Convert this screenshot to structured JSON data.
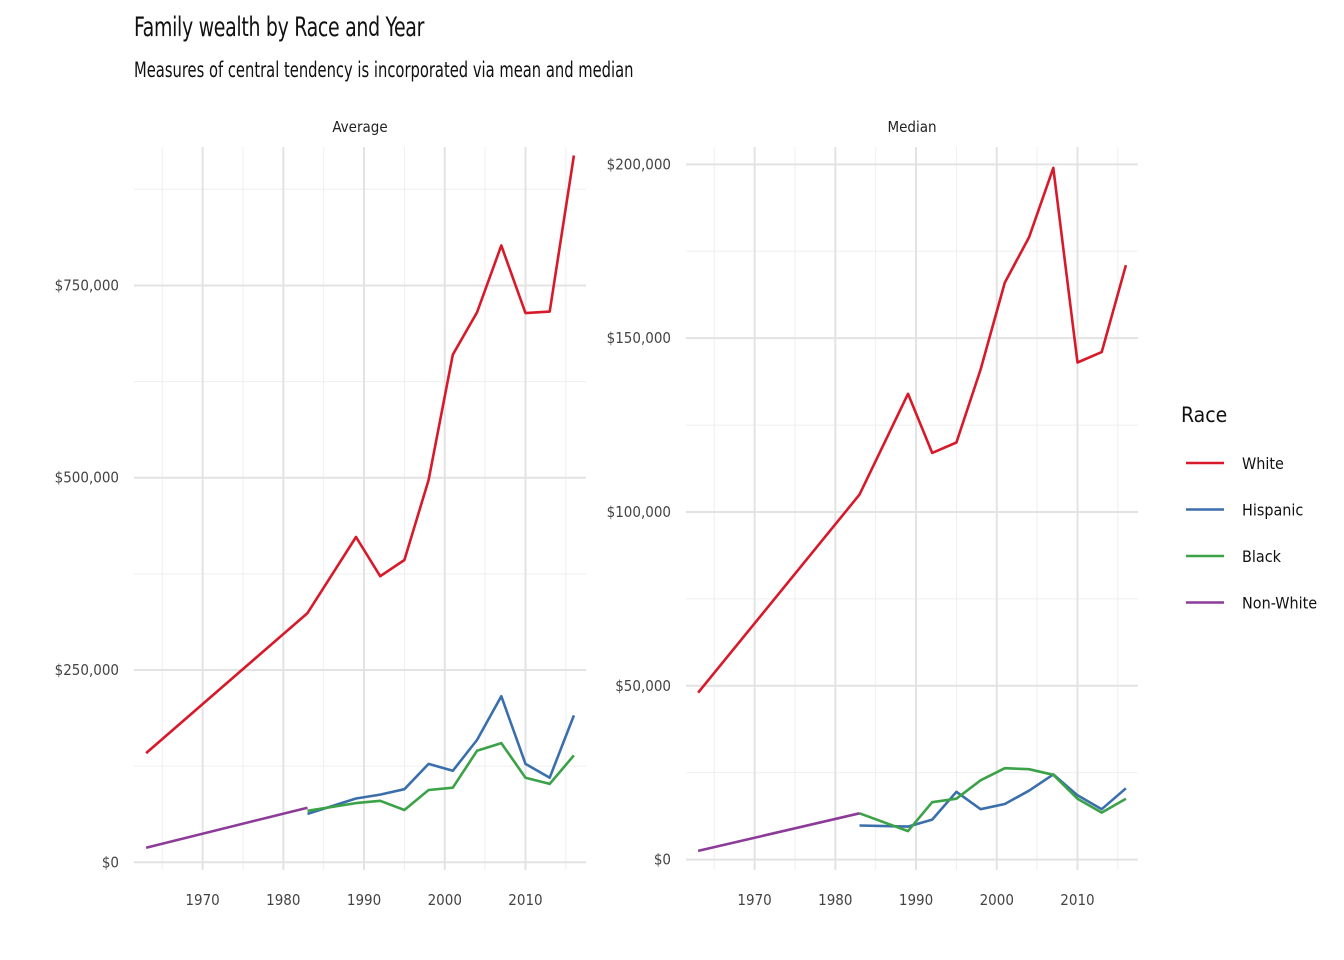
{
  "title": "Family wealth by Race and Year",
  "subtitle": "Measures of central tendency is incorporated via mean and median",
  "legend": {
    "title": "Race",
    "items": [
      {
        "label": "White",
        "color": "#d7192a"
      },
      {
        "label": "Hispanic",
        "color": "#3a6fab"
      },
      {
        "label": "Black",
        "color": "#3ba247"
      },
      {
        "label": "Non-White",
        "color": "#8c3c98"
      }
    ]
  },
  "chart_data": [
    {
      "type": "line",
      "panel": "Average",
      "xlim": [
        1961.5,
        2017.5
      ],
      "ylim": [
        -10000,
        930000
      ],
      "x_ticks": [
        1970,
        1980,
        1990,
        2000,
        2010
      ],
      "y_ticks": [
        0,
        250000,
        500000,
        750000
      ],
      "y_tick_labels": [
        "$0",
        "$250,000",
        "$500,000",
        "$750,000"
      ],
      "grid": true,
      "series": [
        {
          "name": "White",
          "x": [
            1963,
            1983,
            1989,
            1992,
            1995,
            1998,
            2001,
            2004,
            2007,
            2010,
            2013,
            2016
          ],
          "y": [
            142000,
            324000,
            423000,
            372000,
            393000,
            497000,
            660000,
            715000,
            802000,
            714000,
            716000,
            919000
          ]
        },
        {
          "name": "Hispanic",
          "x": [
            1983,
            1989,
            1992,
            1995,
            1998,
            2001,
            2004,
            2007,
            2010,
            2013,
            2016
          ],
          "y": [
            63000,
            83000,
            88000,
            95000,
            128000,
            119000,
            159000,
            216000,
            128000,
            110000,
            191000
          ]
        },
        {
          "name": "Black",
          "x": [
            1983,
            1989,
            1992,
            1995,
            1998,
            2001,
            2004,
            2007,
            2010,
            2013,
            2016
          ],
          "y": [
            67000,
            77000,
            80000,
            68000,
            94000,
            97000,
            145000,
            155000,
            110000,
            102000,
            139000
          ]
        },
        {
          "name": "Non-White",
          "x": [
            1963,
            1983
          ],
          "y": [
            19000,
            71000
          ]
        }
      ]
    },
    {
      "type": "line",
      "panel": "Median",
      "xlim": [
        1961.5,
        2017.5
      ],
      "ylim": [
        -3000,
        205000
      ],
      "x_ticks": [
        1970,
        1980,
        1990,
        2000,
        2010
      ],
      "y_ticks": [
        0,
        50000,
        100000,
        150000,
        200000
      ],
      "y_tick_labels": [
        "$0",
        "$50,000",
        "$100,000",
        "$150,000",
        "$200,000"
      ],
      "grid": true,
      "series": [
        {
          "name": "White",
          "x": [
            1963,
            1983,
            1989,
            1992,
            1995,
            1998,
            2001,
            2004,
            2007,
            2010,
            2013,
            2016
          ],
          "y": [
            48000,
            105000,
            134000,
            117000,
            120000,
            141000,
            166000,
            179000,
            199000,
            143000,
            146000,
            171000
          ]
        },
        {
          "name": "Hispanic",
          "x": [
            1983,
            1989,
            1992,
            1995,
            1998,
            2001,
            2004,
            2007,
            2010,
            2013,
            2016
          ],
          "y": [
            9800,
            9500,
            11500,
            19500,
            14500,
            16000,
            19800,
            24500,
            18500,
            14500,
            20500
          ]
        },
        {
          "name": "Black",
          "x": [
            1983,
            1989,
            1992,
            1995,
            1998,
            2001,
            2004,
            2007,
            2010,
            2013,
            2016
          ],
          "y": [
            13300,
            8200,
            16500,
            17500,
            22800,
            26300,
            26000,
            24400,
            17500,
            13500,
            17500
          ]
        },
        {
          "name": "Non-White",
          "x": [
            1963,
            1983
          ],
          "y": [
            2500,
            13300
          ]
        }
      ]
    }
  ]
}
